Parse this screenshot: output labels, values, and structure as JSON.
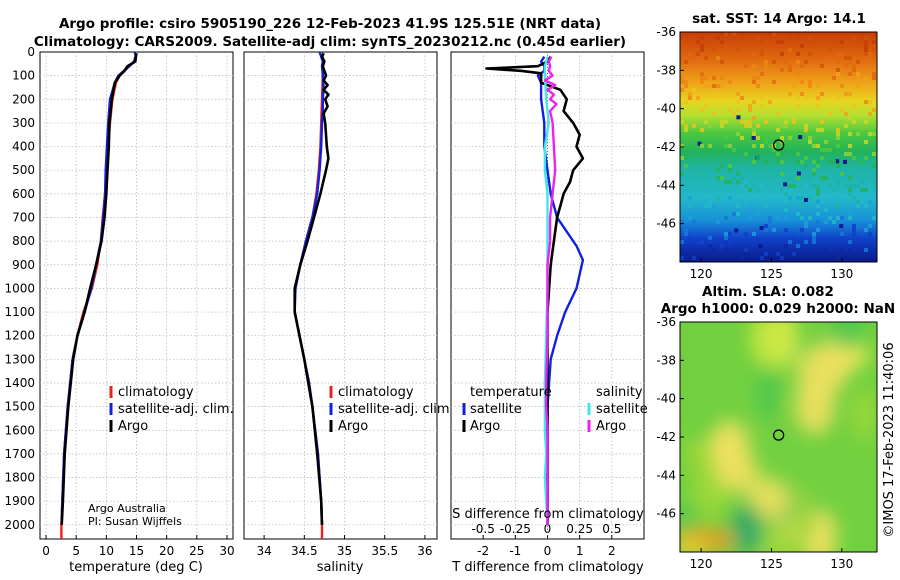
{
  "header": {
    "title_line1": "Argo profile: csiro 5905190_226 12-Feb-2023 41.9S 125.51E (NRT data)",
    "title_line2": "Climatology: CARS2009. Satellite-adj clim: synTS_20230212.nc (0.45d earlier)"
  },
  "credits": {
    "line1": "Argo Australia",
    "line2": "PI: Susan Wijffels"
  },
  "watermark": "©IMOS 17-Feb-2023 11:40:06",
  "colors": {
    "climatology": "#e8231b",
    "satellite_adj": "#1020e0",
    "argo": "#000000",
    "satellite_s": "#3fe6f0",
    "salinity": "#ee22ee"
  },
  "chart_data": [
    {
      "type": "line",
      "id": "temperature",
      "xlabel": "temperature (deg C)",
      "ylabel": "",
      "xlim": [
        -1,
        31
      ],
      "ylim": [
        2060,
        0
      ],
      "xticks": [
        "0",
        "5",
        "10",
        "15",
        "20",
        "25",
        "30"
      ],
      "yticks": [
        "0",
        "100",
        "200",
        "300",
        "400",
        "500",
        "600",
        "700",
        "800",
        "900",
        "1000",
        "1100",
        "1200",
        "1300",
        "1400",
        "1500",
        "1600",
        "1700",
        "1800",
        "1900",
        "2000"
      ],
      "legend": [
        "climatology",
        "satellite-adj. clim.",
        "Argo"
      ],
      "series": [
        {
          "name": "climatology",
          "color": "#e8231b",
          "depth": [
            2000,
            2060,
            1900,
            1700,
            1500,
            1300,
            1200,
            1100,
            1000,
            900,
            800,
            700,
            600,
            500,
            400,
            300,
            200,
            130,
            100,
            60,
            40,
            20
          ],
          "values": [
            2.55,
            2.55,
            2.7,
            3.0,
            3.6,
            4.4,
            5.2,
            6.2,
            7.6,
            8.5,
            9.1,
            9.4,
            9.8,
            10.0,
            10.3,
            10.6,
            11.0,
            11.6,
            12.2,
            13.8,
            14.6,
            14.8
          ]
        },
        {
          "name": "satellite-adj. clim.",
          "color": "#1020e0",
          "depth": [
            0,
            20,
            40,
            60,
            100,
            130,
            200,
            300,
            400,
            500,
            600,
            700,
            800,
            900,
            1000,
            1100,
            1200,
            1300,
            1500,
            1700,
            1900,
            2000
          ],
          "values": [
            14.7,
            14.9,
            14.6,
            13.8,
            12.0,
            11.4,
            10.6,
            10.3,
            10.1,
            9.9,
            9.8,
            9.5,
            9.1,
            8.3,
            7.5,
            6.4,
            5.2,
            4.4,
            3.6,
            3.0,
            2.7,
            2.6
          ]
        },
        {
          "name": "Argo",
          "color": "#000000",
          "depth": [
            5,
            20,
            40,
            60,
            80,
            100,
            130,
            200,
            300,
            400,
            500,
            600,
            700,
            800,
            900,
            1000,
            1100,
            1200,
            1300,
            1500,
            1700,
            1900,
            2000
          ],
          "values": [
            15.0,
            14.9,
            14.8,
            13.5,
            13.0,
            12.2,
            11.4,
            10.9,
            10.5,
            10.4,
            10.2,
            10.0,
            9.7,
            9.2,
            8.3,
            7.3,
            6.4,
            5.2,
            4.5,
            3.7,
            3.1,
            2.8,
            2.6
          ]
        }
      ]
    },
    {
      "type": "line",
      "id": "salinity",
      "xlabel": "salinity",
      "xlim": [
        33.75,
        36.15
      ],
      "ylim": [
        2060,
        0
      ],
      "xticks": [
        "34",
        "34.5",
        "35",
        "35.5",
        "36"
      ],
      "legend": [
        "climatology",
        "satellite-adj. clim.",
        "Argo"
      ],
      "series": [
        {
          "name": "climatology",
          "color": "#e8231b",
          "depth": [
            2000,
            2060,
            1900,
            1700,
            1500,
            1400,
            1300,
            1200,
            1100,
            1000,
            900,
            800,
            700,
            600,
            500,
            400,
            300,
            200,
            100,
            40,
            20
          ],
          "values": [
            34.72,
            34.72,
            34.71,
            34.67,
            34.6,
            34.56,
            34.5,
            34.44,
            34.38,
            34.38,
            34.45,
            34.52,
            34.6,
            34.65,
            34.68,
            34.7,
            34.71,
            34.72,
            34.73,
            34.73,
            34.73
          ]
        },
        {
          "name": "satellite-adj. clim.",
          "color": "#1020e0",
          "depth": [
            0,
            20,
            40,
            60,
            100,
            150,
            200,
            250,
            300,
            400,
            500,
            600,
            700,
            800,
            900,
            1000,
            1100,
            1200,
            1300,
            1400,
            1500,
            1700,
            1900,
            2000
          ],
          "values": [
            34.69,
            34.71,
            34.73,
            34.72,
            34.73,
            34.74,
            34.73,
            34.73,
            34.72,
            34.71,
            34.69,
            34.66,
            34.6,
            34.52,
            34.45,
            34.39,
            34.38,
            34.44,
            34.5,
            34.56,
            34.6,
            34.67,
            34.71,
            34.72
          ]
        },
        {
          "name": "Argo",
          "color": "#000000",
          "depth": [
            5,
            20,
            40,
            60,
            80,
            100,
            120,
            140,
            160,
            180,
            200,
            230,
            260,
            300,
            350,
            400,
            450,
            500,
            600,
            700,
            800,
            900,
            1000,
            1100,
            1200,
            1300,
            1400,
            1500,
            1700,
            1900,
            2000
          ],
          "values": [
            34.74,
            34.72,
            34.75,
            34.73,
            34.75,
            34.77,
            34.74,
            34.79,
            34.74,
            34.8,
            34.76,
            34.79,
            34.74,
            34.76,
            34.77,
            34.78,
            34.8,
            34.77,
            34.7,
            34.62,
            34.54,
            34.45,
            34.38,
            34.38,
            34.44,
            34.5,
            34.55,
            34.6,
            34.66,
            34.71,
            34.72
          ]
        }
      ]
    },
    {
      "type": "line",
      "id": "difference",
      "xlabel": "T difference from climatology",
      "xlabel2": "S difference from climatology",
      "xlim": [
        -3,
        3
      ],
      "xlim2": [
        -0.75,
        0.75
      ],
      "ylim": [
        2060,
        0
      ],
      "xticks": [
        "-2",
        "-1",
        "0",
        "1",
        "2"
      ],
      "xticks2": [
        "-0.5",
        "-0.25",
        "0",
        "0.25",
        "0.5"
      ],
      "legend_temperature": {
        "title": "temperature",
        "items": [
          "satellite",
          "Argo"
        ]
      },
      "legend_salinity": {
        "title": "salinity",
        "items": [
          "satellite",
          "Argo"
        ]
      },
      "series": [
        {
          "name": "T satellite",
          "color": "#1020e0",
          "depth": [
            20,
            40,
            60,
            80,
            100,
            130,
            160,
            200,
            300,
            400,
            500,
            600,
            700,
            760,
            820,
            880,
            940,
            1000,
            1100,
            1200,
            1300,
            1500,
            1700,
            1900,
            2000
          ],
          "values": [
            -0.1,
            -0.2,
            -0.1,
            -0.1,
            -0.3,
            -0.2,
            -0.2,
            -0.2,
            -0.1,
            -0.1,
            0.0,
            0.1,
            0.3,
            0.6,
            0.9,
            1.1,
            1.0,
            0.9,
            0.55,
            0.3,
            0.1,
            0.0,
            0.0,
            0.0,
            0.0
          ]
        },
        {
          "name": "T Argo",
          "color": "#000000",
          "depth": [
            20,
            40,
            60,
            70,
            80,
            90,
            100,
            130,
            160,
            200,
            250,
            300,
            350,
            400,
            450,
            500,
            550,
            600,
            650,
            700,
            800,
            900,
            1000,
            1100,
            1200,
            1300,
            1500,
            1700,
            1900,
            2000
          ],
          "values": [
            0.1,
            0.0,
            -0.3,
            -1.9,
            -0.8,
            -0.2,
            -0.2,
            -0.2,
            0.4,
            0.6,
            0.5,
            0.8,
            1.0,
            0.9,
            1.1,
            0.8,
            0.7,
            0.5,
            0.4,
            0.3,
            0.2,
            0.1,
            0.05,
            0.0,
            0.0,
            0.0,
            0.0,
            0.0,
            0.0,
            0.0
          ]
        },
        {
          "name": "S satellite",
          "color": "#3fe6f0",
          "depth": [
            20,
            60,
            100,
            200,
            300,
            400,
            500,
            600,
            700,
            800,
            1000,
            1200,
            1400,
            1500,
            1600,
            1700,
            1800,
            1900,
            2000
          ],
          "values": [
            0.0,
            -0.02,
            -0.02,
            -0.01,
            0.01,
            -0.02,
            -0.02,
            0.0,
            0.0,
            0.0,
            0.0,
            -0.01,
            -0.02,
            -0.02,
            -0.02,
            -0.01,
            -0.02,
            -0.01,
            0.0
          ]
        },
        {
          "name": "S Argo",
          "color": "#ee22ee",
          "depth": [
            20,
            40,
            60,
            80,
            100,
            120,
            140,
            160,
            180,
            200,
            220,
            250,
            300,
            400,
            500,
            600,
            700,
            800,
            900,
            1000,
            1200,
            1400,
            1500,
            1600,
            1700,
            1800,
            1900,
            2000
          ],
          "values": [
            0.03,
            0.01,
            0.02,
            0.01,
            0.04,
            -0.02,
            0.06,
            0.0,
            0.05,
            0.02,
            0.07,
            0.02,
            0.04,
            0.05,
            0.06,
            0.04,
            0.02,
            0.02,
            0.0,
            0.0,
            0.0,
            -0.01,
            -0.01,
            0.0,
            0.0,
            0.0,
            0.0,
            0.0
          ]
        }
      ]
    },
    {
      "type": "heatmap",
      "id": "sst_map",
      "title": "sat. SST: 14 Argo: 14.1",
      "xlim": [
        118.5,
        132.5
      ],
      "ylim": [
        -48,
        -36
      ],
      "xticks": [
        "120",
        "125",
        "130"
      ],
      "yticks": [
        "-36",
        "-38",
        "-40",
        "-42",
        "-44",
        "-46"
      ],
      "marker": {
        "lon": 125.51,
        "lat": -41.9
      }
    },
    {
      "type": "heatmap",
      "id": "sla_map",
      "title_line1": "Altim. SLA: 0.082",
      "title_line2": "Argo h1000: 0.029 h2000: NaN",
      "xlim": [
        118.5,
        132.5
      ],
      "ylim": [
        -48,
        -36
      ],
      "xticks": [
        "120",
        "125",
        "130"
      ],
      "yticks": [
        "-36",
        "-38",
        "-40",
        "-42",
        "-44",
        "-46"
      ],
      "marker": {
        "lon": 125.51,
        "lat": -41.9
      }
    }
  ]
}
